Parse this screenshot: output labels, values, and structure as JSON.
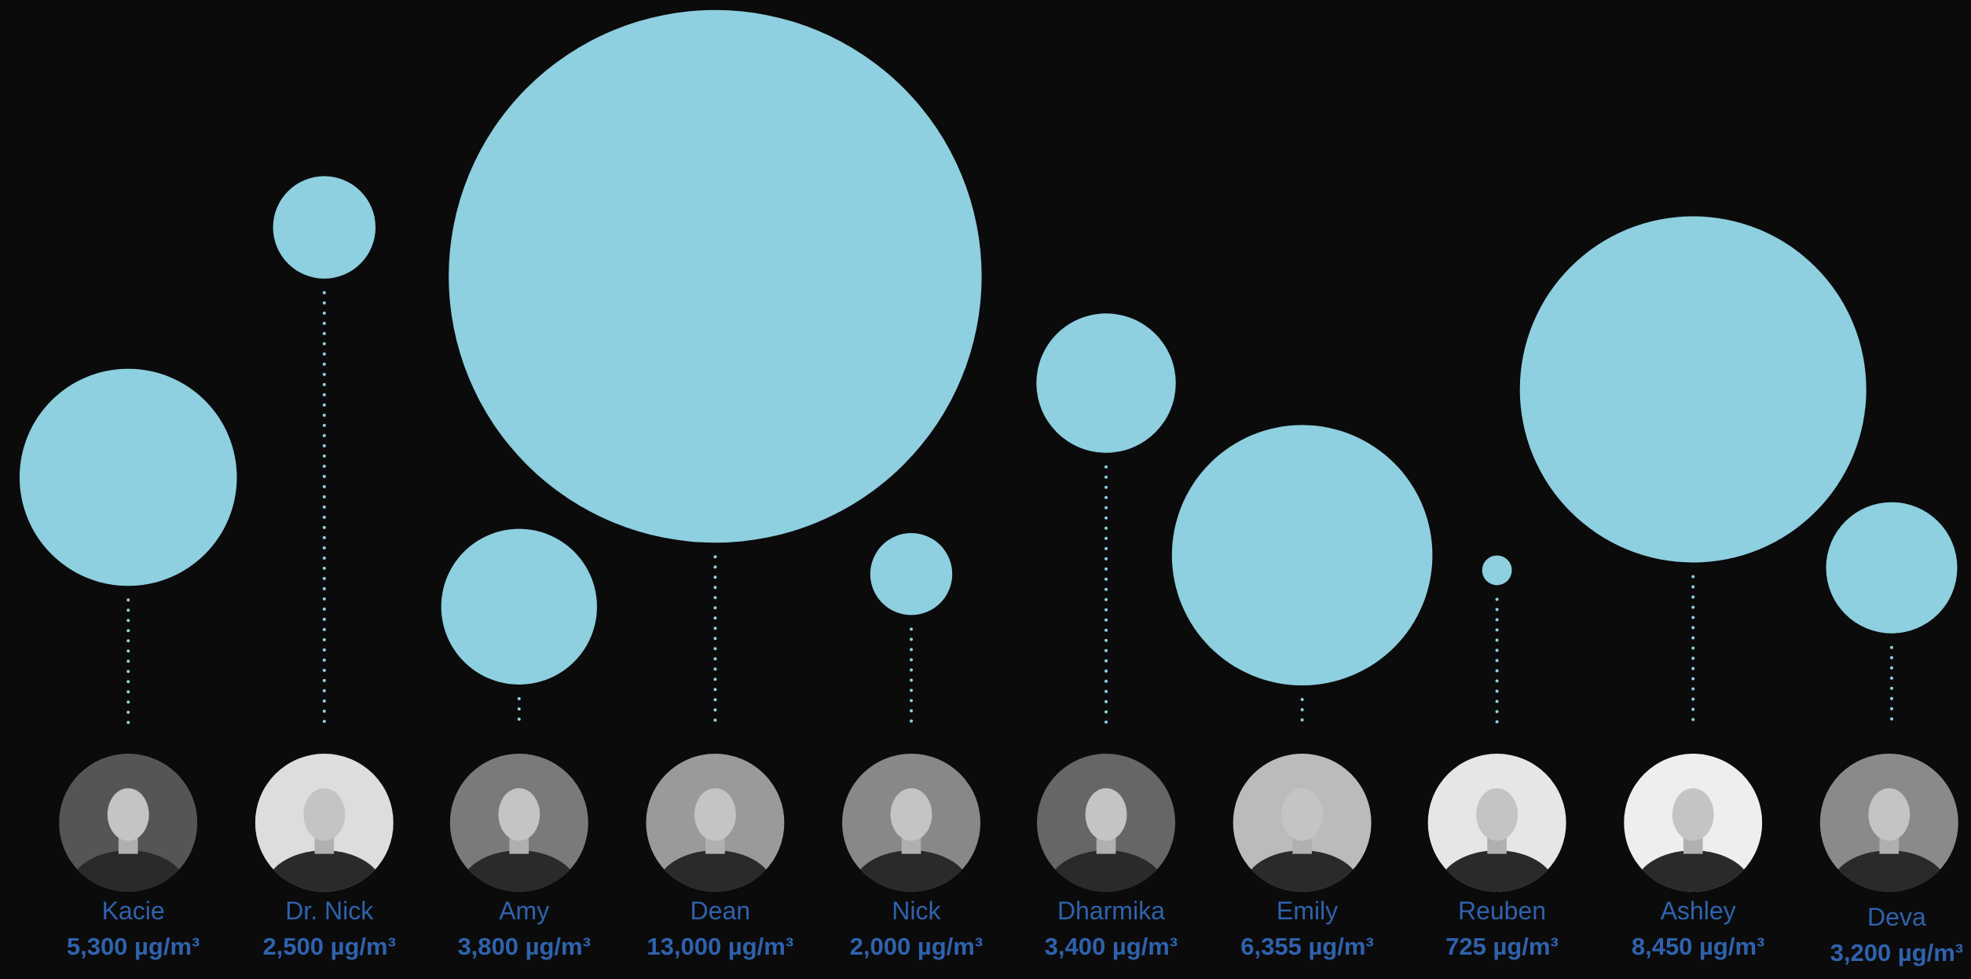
{
  "chart_data": {
    "type": "bubble",
    "categories": [
      "Kacie",
      "Dr. Nick",
      "Amy",
      "Dean",
      "Nick",
      "Dharmika",
      "Emily",
      "Reuben",
      "Ashley",
      "Deva"
    ],
    "values": [
      5300,
      2500,
      3800,
      13000,
      2000,
      3400,
      6355,
      725,
      8450,
      3200
    ],
    "value_labels": [
      "5,300 µg/m³",
      "2,500 µg/m³",
      "3,800 µg/m³",
      "13,000 µg/m³",
      "2,000 µg/m³",
      "3,400 µg/m³",
      "6,355 µg/m³",
      "725 µg/m³",
      "8,450 µg/m³",
      "3,200 µg/m³"
    ],
    "color": "#8ecfe0"
  }
}
